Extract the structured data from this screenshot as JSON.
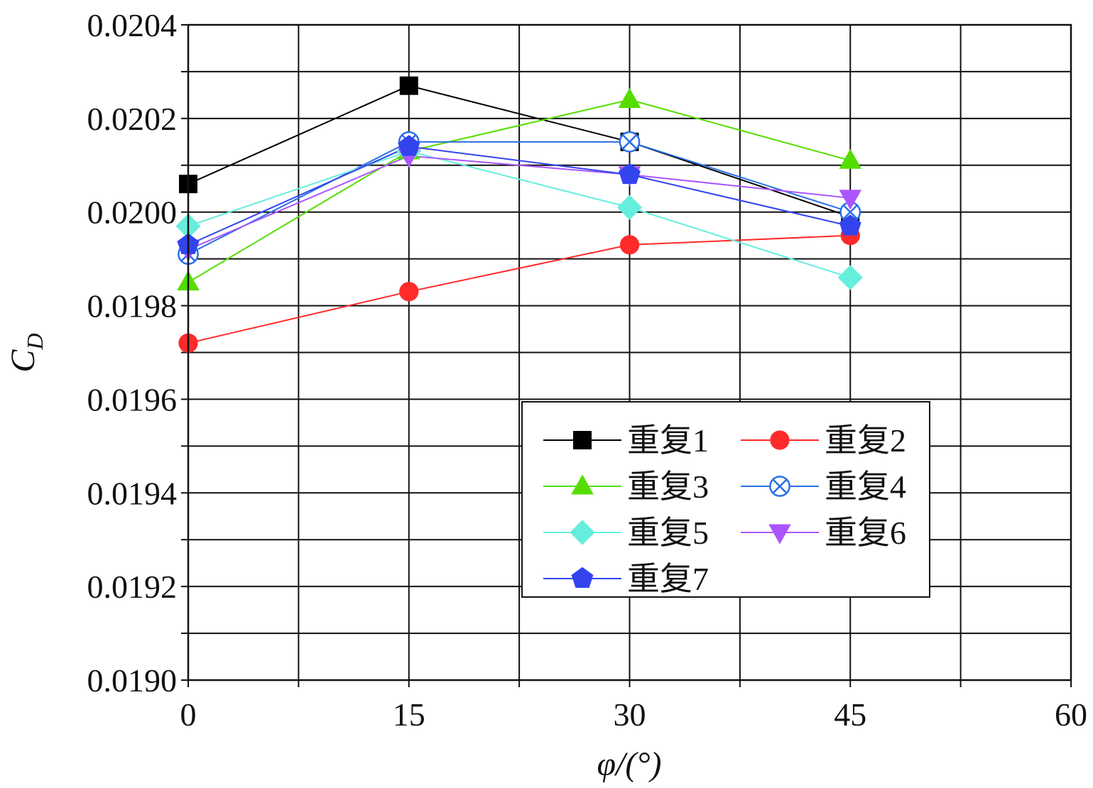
{
  "chart_data": {
    "type": "line",
    "title": "",
    "xlabel": "φ/(°)",
    "ylabel": {
      "main": "C",
      "sub": "D"
    },
    "xlim": [
      0,
      60
    ],
    "ylim": [
      0.019,
      0.0204
    ],
    "xticks": [
      0,
      15,
      30,
      45,
      60
    ],
    "xtick_labels": [
      "0",
      "15",
      "30",
      "45",
      "60"
    ],
    "yticks": [
      0.019,
      0.0192,
      0.0194,
      0.0196,
      0.0198,
      0.02,
      0.0202,
      0.0204
    ],
    "ytick_labels": [
      "0.0190",
      "0.0192",
      "0.0194",
      "0.0196",
      "0.0198",
      "0.0200",
      "0.0202",
      "0.0204"
    ],
    "grid": true,
    "legend_position": "bottom-right",
    "x": [
      0,
      15,
      30,
      45
    ],
    "series": [
      {
        "name": "重复1",
        "color": "#000000",
        "marker": "square",
        "values": [
          0.02006,
          0.02027,
          0.02015,
          0.01999
        ]
      },
      {
        "name": "重复2",
        "color": "#ff2a2a",
        "marker": "circle",
        "values": [
          0.01972,
          0.01983,
          0.01993,
          0.01995
        ]
      },
      {
        "name": "重复3",
        "color": "#55dd00",
        "marker": "triangle-up",
        "values": [
          0.01985,
          0.02013,
          0.02024,
          0.02011
        ]
      },
      {
        "name": "重复4",
        "color": "#2a6fe8",
        "marker": "circle-x",
        "values": [
          0.01991,
          0.02015,
          0.02015,
          0.02
        ]
      },
      {
        "name": "重复5",
        "color": "#66eedd",
        "marker": "diamond",
        "values": [
          0.01997,
          0.02013,
          0.02001,
          0.01986
        ]
      },
      {
        "name": "重复6",
        "color": "#aa55ff",
        "marker": "triangle-down",
        "values": [
          0.01992,
          0.02012,
          0.02008,
          0.02003
        ]
      },
      {
        "name": "重复7",
        "color": "#3344ee",
        "marker": "pentagon",
        "values": [
          0.01993,
          0.02014,
          0.02008,
          0.01997
        ]
      }
    ]
  }
}
